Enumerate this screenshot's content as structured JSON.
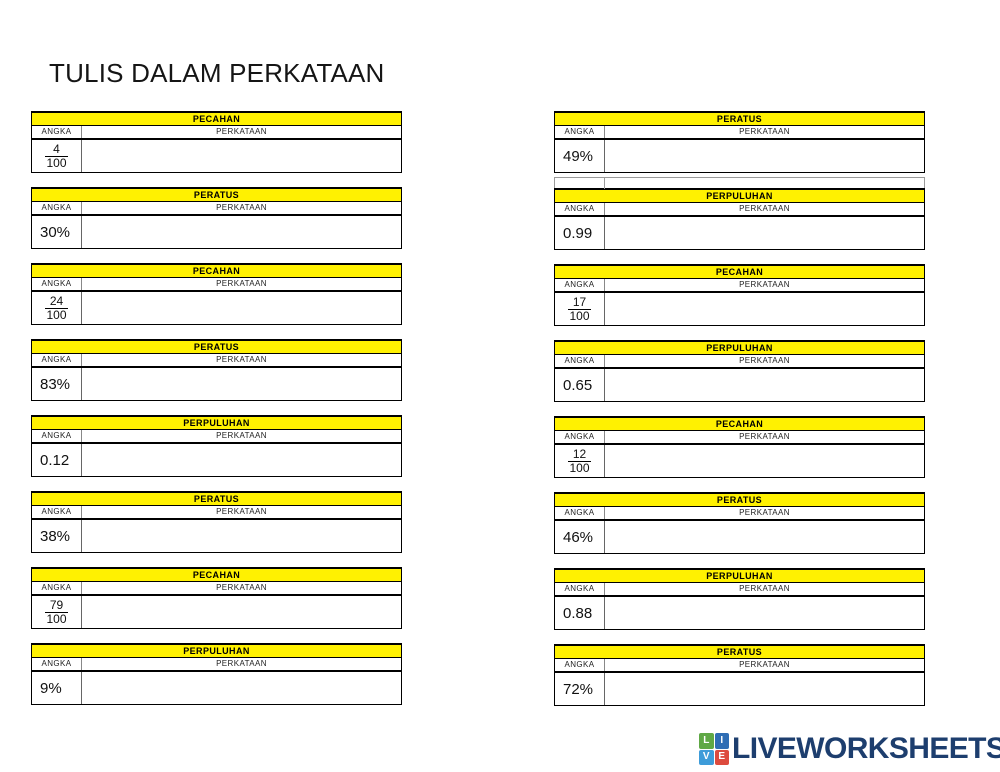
{
  "title": "TULIS DALAM PERKATAAN",
  "table_labels": {
    "angka": "ANGKA",
    "perkataan": "PERKATAAN"
  },
  "columns": {
    "left": [
      {
        "category": "PECAHAN",
        "type": "fraction",
        "numerator": "4",
        "denominator": "100"
      },
      {
        "category": "PERATUS",
        "type": "plain",
        "value": "30%"
      },
      {
        "category": "PECAHAN",
        "type": "fraction",
        "numerator": "24",
        "denominator": "100"
      },
      {
        "category": "PERATUS",
        "type": "plain",
        "value": "83%"
      },
      {
        "category": "PERPULUHAN",
        "type": "plain",
        "value": "0.12"
      },
      {
        "category": "PERATUS",
        "type": "plain",
        "value": "38%"
      },
      {
        "category": "PECAHAN",
        "type": "fraction",
        "numerator": "79",
        "denominator": "100"
      },
      {
        "category": "PERPULUHAN",
        "type": "plain",
        "value": "9%"
      }
    ],
    "right": [
      {
        "category": "PERATUS",
        "type": "plain",
        "value": "49%",
        "extra_row": true
      },
      {
        "category": "PERPULUHAN",
        "type": "plain",
        "value": "0.99"
      },
      {
        "category": "PECAHAN",
        "type": "fraction",
        "numerator": "17",
        "denominator": "100"
      },
      {
        "category": "PERPULUHAN",
        "type": "plain",
        "value": "0.65"
      },
      {
        "category": "PECAHAN",
        "type": "fraction",
        "numerator": "12",
        "denominator": "100"
      },
      {
        "category": "PERATUS",
        "type": "plain",
        "value": "46%"
      },
      {
        "category": "PERPULUHAN",
        "type": "plain",
        "value": "0.88"
      },
      {
        "category": "PERATUS",
        "type": "plain",
        "value": "72%"
      }
    ]
  },
  "colors": {
    "category_header_bg": "#FFF101",
    "table_border": "#000000",
    "brand_text": "#1D3E6E"
  },
  "footer": {
    "brand": "LIVEWORKSHEETS",
    "logo_squares": [
      {
        "letter": "L",
        "color": "#5FA845"
      },
      {
        "letter": "I",
        "color": "#2E6DB4"
      },
      {
        "letter": "V",
        "color": "#3E9CD9"
      },
      {
        "letter": "E",
        "color": "#DD4B3E"
      }
    ]
  }
}
